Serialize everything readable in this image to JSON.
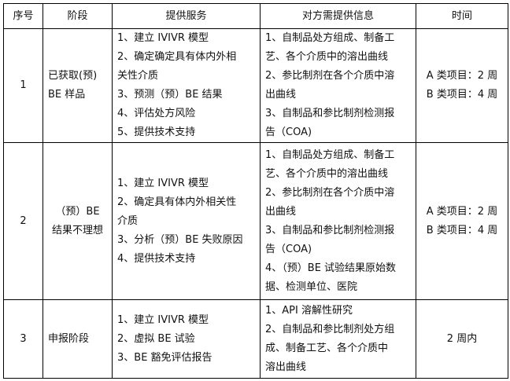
{
  "headers": [
    "序号",
    "阶段",
    "提供服务",
    "对方需提供信息",
    "时间"
  ],
  "rows": [
    {
      "no": "1",
      "stage": [
        "已获取(预)",
        "BE 样品"
      ],
      "services": [
        "1、建立 IVIVR 模型",
        "2、确定确定具有体内外相",
        "关性介质",
        "3、预测（预）BE 结果",
        "4、评估处方风险",
        "5、提供技术支持"
      ],
      "info": [
        "1、自制品处方组成、制备工",
        "艺、各个介质中的溶出曲线",
        "2、参比制剂在各个介质中溶",
        "出曲线",
        "3、自制品和参比制剂检测报",
        "告（COA)"
      ],
      "time": [
        "A 类项目：2 周",
        "B 类项目：4 周"
      ]
    },
    {
      "no": "2",
      "stage": [
        "（预）BE",
        "结果不理想"
      ],
      "services": [
        "1、建立 IVIVR 模型",
        "2、确定具有体内外相关性",
        "介质",
        "3、分析（预）BE 失败原因",
        "4、提供技术支持"
      ],
      "info": [
        "1、自制品处方组成、制备工",
        "艺、各个介质中的溶出曲线",
        "2、参比制剂在各个介质中溶",
        "出曲线",
        "3、自制品和参比制剂检测报",
        "告（COA)",
        "4、（预）BE 试验结果原始数",
        "据、检测单位、医院"
      ],
      "time": [
        "A 类项目：2 周",
        "B 类项目：4 周"
      ]
    },
    {
      "no": "3",
      "stage": [
        "申报阶段"
      ],
      "services": [
        "1、建立 IVIVR 模型",
        "2、虚拟 BE 试验",
        "3、BE 豁免评估报告"
      ],
      "info": [
        "1、API 溶解性研究",
        "2、自制品和参比制剂处方组",
        "成、制备工艺、各个介质中",
        "溶出曲线"
      ],
      "time": [
        "2 周内"
      ]
    }
  ]
}
